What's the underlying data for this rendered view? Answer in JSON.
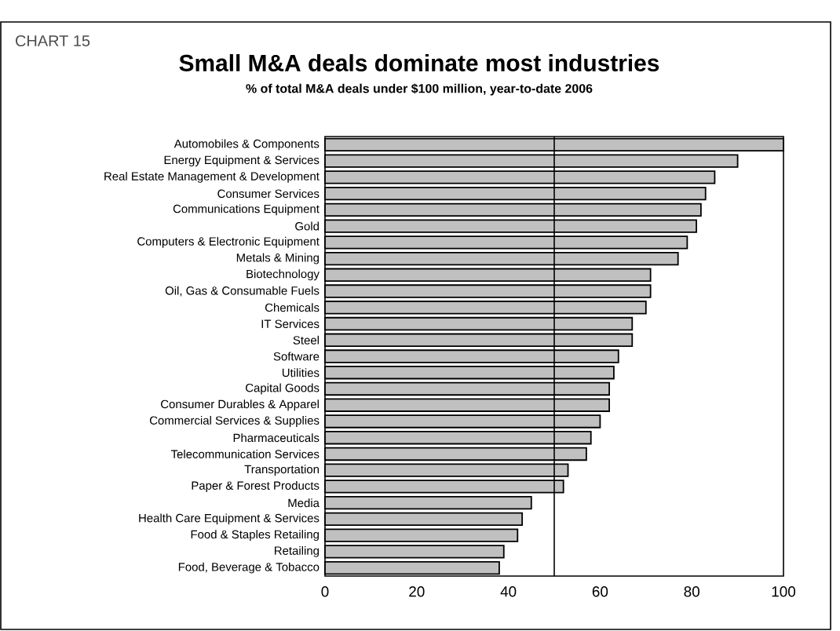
{
  "chart_data": {
    "type": "bar",
    "orientation": "horizontal",
    "title": "Small M&A deals dominate most industries",
    "subtitle": "% of total M&A deals under $100 million, year-to-date 2006",
    "annotations": [
      "CHART 15"
    ],
    "categories": [
      "Automobiles & Components",
      "Energy Equipment & Services",
      "Real Estate Management & Development",
      "Consumer Services",
      "Communications Equipment",
      "Gold",
      "Computers & Electronic Equipment",
      "Metals & Mining",
      "Biotechnology",
      "Oil, Gas & Consumable Fuels",
      "Chemicals",
      "IT Services",
      "Steel",
      "Software",
      "Utilities",
      "Capital Goods",
      "Consumer Durables & Apparel",
      "Commercial Services & Supplies",
      "Pharmaceuticals",
      "Telecommunication Services",
      "Transportation",
      "Paper & Forest Products",
      "Media",
      "Health Care Equipment & Services",
      "Food & Staples Retailing",
      "Retailing",
      "Food, Beverage & Tobacco"
    ],
    "values": [
      100,
      90,
      85,
      83,
      82,
      81,
      79,
      77,
      71,
      71,
      70,
      67,
      67,
      64,
      63,
      62,
      62,
      60,
      58,
      57,
      53,
      52,
      45,
      43,
      42,
      39,
      38
    ],
    "color": "#c0c0c0",
    "xlim": [
      0,
      100
    ],
    "xticks": [
      0,
      20,
      40,
      60,
      80,
      100
    ],
    "ref_lines": [
      {
        "axis": "x",
        "value": 50,
        "color": "#000000"
      }
    ]
  }
}
